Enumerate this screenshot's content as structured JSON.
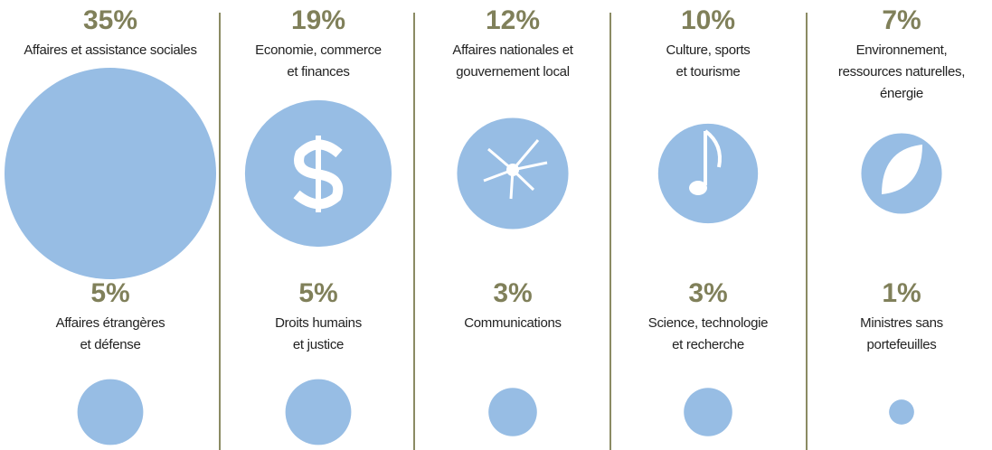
{
  "chart_data": {
    "type": "bubble",
    "categories": [
      [
        "Affaires et assistance sociales"
      ],
      [
        "Economie, commerce",
        "et finances"
      ],
      [
        "Affaires nationales et",
        "gouvernement local"
      ],
      [
        "Culture, sports",
        "et tourisme"
      ],
      [
        "Environnement,",
        "ressources naturelles,",
        "énergie"
      ],
      [
        "Affaires étrangères",
        "et défense"
      ],
      [
        "Droits humains",
        "et justice"
      ],
      [
        "Communications"
      ],
      [
        "Science, technologie",
        "et recherche"
      ],
      [
        "Ministres sans",
        "portefeuilles"
      ]
    ],
    "values": [
      35,
      19,
      12,
      10,
      7,
      5,
      5,
      3,
      3,
      1
    ],
    "value_labels": [
      "35%",
      "19%",
      "12%",
      "10%",
      "7%",
      "5%",
      "5%",
      "3%",
      "3%",
      "1%"
    ],
    "color": "#97bde4"
  }
}
